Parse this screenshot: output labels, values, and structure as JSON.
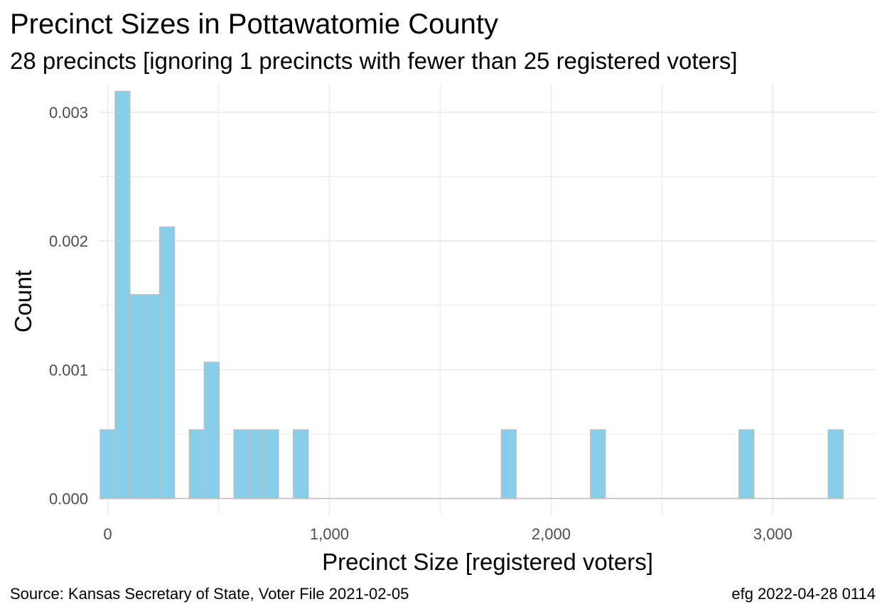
{
  "chart_data": {
    "type": "bar",
    "title": "Precinct Sizes in Pottawatomie County",
    "subtitle": "28 precincts [ignoring 1 precincts with fewer than 25 registered voters]",
    "xlabel": "Precinct Size [registered voters]",
    "ylabel": "Count",
    "xlim": [
      -40,
      3470
    ],
    "ylim": [
      -0.00013,
      0.00322
    ],
    "bin_width": 67,
    "x_ticks": [
      0,
      1000,
      2000,
      3000
    ],
    "x_tick_labels": [
      "0",
      "1,000",
      "2,000",
      "3,000"
    ],
    "y_ticks": [
      0,
      0.001,
      0.002,
      0.003
    ],
    "y_tick_labels": [
      "0.000",
      "0.001",
      "0.002",
      "0.003"
    ],
    "bins": [
      {
        "x": 0,
        "value": 0.000533
      },
      {
        "x": 67,
        "value": 0.003162
      },
      {
        "x": 134,
        "value": 0.001583
      },
      {
        "x": 201,
        "value": 0.001583
      },
      {
        "x": 268,
        "value": 0.002109
      },
      {
        "x": 402,
        "value": 0.000533
      },
      {
        "x": 469,
        "value": 0.001058
      },
      {
        "x": 603,
        "value": 0.000533
      },
      {
        "x": 670,
        "value": 0.000533
      },
      {
        "x": 737,
        "value": 0.000533
      },
      {
        "x": 871,
        "value": 0.000533
      },
      {
        "x": 1809,
        "value": 0.000533
      },
      {
        "x": 2211,
        "value": 0.000533
      },
      {
        "x": 2881,
        "value": 0.000533
      },
      {
        "x": 3283,
        "value": 0.000533
      }
    ],
    "grid": true,
    "legend": "none",
    "colors": {
      "fill": "#87ceeb",
      "outline": "#bebebe",
      "grid": "#ebebeb"
    }
  },
  "caption": {
    "source": "Source:  Kansas Secretary of State, Voter File  2021-02-05",
    "stamp": "efg 2022-04-28 0114"
  }
}
